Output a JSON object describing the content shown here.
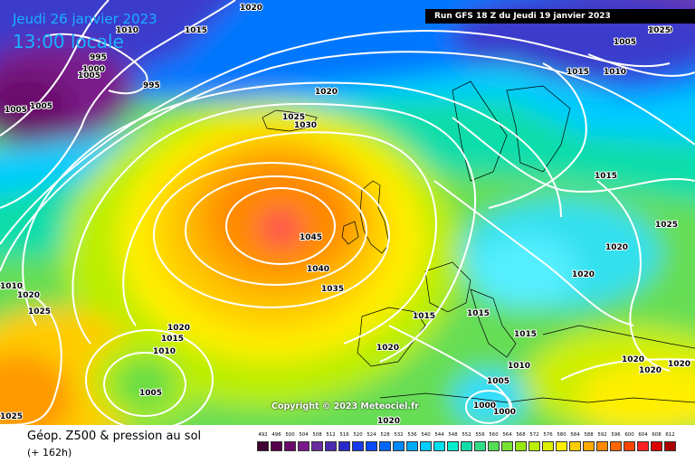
{
  "header": {
    "date": "Jeudi 26 janvier 2023",
    "time": "13:00 locale",
    "run": "Run GFS 18 Z du Jeudi 19 janvier 2023"
  },
  "copyright": "Copyright © 2023 Meteociel.fr",
  "footer": {
    "param_title": "Géop. Z500 & pression au sol",
    "lead_time": "(+ 162h)"
  },
  "color_scale": {
    "labels": [
      "492",
      "496",
      "500",
      "504",
      "508",
      "512",
      "516",
      "520",
      "524",
      "528",
      "532",
      "536",
      "540",
      "544",
      "548",
      "552",
      "556",
      "560",
      "564",
      "568",
      "572",
      "576",
      "580",
      "584",
      "588",
      "592",
      "596",
      "600",
      "604",
      "608",
      "612"
    ],
    "colors": [
      "#3d0030",
      "#55004a",
      "#6a0a6a",
      "#7a1a8a",
      "#6a2aa0",
      "#4a2ab0",
      "#2a2acc",
      "#1a3aee",
      "#0a4aff",
      "#0066ff",
      "#0088ff",
      "#00aaff",
      "#00ccff",
      "#00e0ee",
      "#00eecc",
      "#11ddaa",
      "#33dd88",
      "#55dd55",
      "#77e233",
      "#99e611",
      "#bbee00",
      "#ddee00",
      "#ffee00",
      "#ffcc00",
      "#ffaa00",
      "#ff8800",
      "#ff6600",
      "#ff4400",
      "#ff2222",
      "#dd0000",
      "#aa0000"
    ]
  },
  "isobar_labels": [
    "1020",
    "1015",
    "1010",
    "995",
    "1005",
    "1000",
    "995",
    "1005",
    "1005",
    "1020",
    "1025",
    "1030",
    "1045",
    "1040",
    "1035",
    "1020",
    "1015",
    "1010",
    "1005",
    "1025",
    "1010",
    "1020",
    "1025",
    "1015",
    "1015",
    "1005",
    "1000",
    "1010",
    "1005",
    "1000",
    "1020",
    "1015",
    "1010",
    "1015",
    "1025",
    "1020",
    "1020",
    "1015",
    "1020",
    "1020",
    "1020",
    "1020",
    "1025",
    "1000"
  ]
}
